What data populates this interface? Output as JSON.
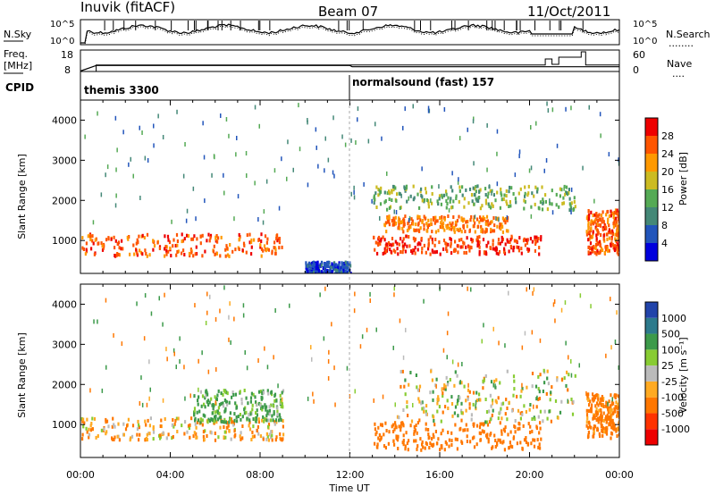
{
  "header": {
    "station": "Inuvik (fitACF)",
    "beam": "Beam 07",
    "date": "11/Oct/2011"
  },
  "noise_panel": {
    "left_label": "N.Sky",
    "left_ticks": [
      "10^5",
      "10^0"
    ],
    "right_ticks": [
      "10^5",
      "10^0"
    ],
    "right_label": "N.Search",
    "right_legend": "........"
  },
  "freq_panel": {
    "left_label_1": "Freq.",
    "left_label_2": "[MHz]",
    "left_ticks": [
      "18",
      "8"
    ],
    "right_ticks": [
      "60",
      "0"
    ],
    "right_label": "Nave",
    "right_legend": "...."
  },
  "cpid_panel": {
    "label": "CPID",
    "segments": [
      {
        "name": "themis 3300",
        "start_hour": 0
      },
      {
        "name": "normalsound (fast) 157",
        "start_hour": 12
      }
    ]
  },
  "colors": {
    "power_scale": [
      "#0000dd",
      "#2255bb",
      "#448877",
      "#55aa55",
      "#ccbb22",
      "#ff9900",
      "#ff5500",
      "#ee0000"
    ],
    "velocity_scale": [
      "#2244aa",
      "#2d7a8c",
      "#3c9a4a",
      "#88cc33",
      "#bbbbbb",
      "#ffaa22",
      "#ff7700",
      "#ff3300",
      "#ee0000"
    ]
  },
  "chart_data": [
    {
      "type": "line",
      "name": "noise",
      "x_range": [
        0,
        24
      ],
      "series": [
        {
          "name": "N.Sky",
          "style": "solid"
        },
        {
          "name": "N.Search",
          "style": "dotted"
        }
      ]
    },
    {
      "type": "line",
      "name": "frequency",
      "ylim_left": [
        8,
        18
      ],
      "ylim_right": [
        0,
        60
      ],
      "series": [
        {
          "name": "Freq.",
          "x": [
            0,
            0.7,
            12,
            12.1,
            24
          ],
          "y": [
            8.2,
            10.8,
            10.8,
            10.2,
            10.2
          ]
        },
        {
          "name": "Nave",
          "x": [
            0,
            0.7,
            20.5,
            20.7,
            21,
            21.3,
            22.3,
            22.5,
            24
          ],
          "y": [
            0,
            18,
            18,
            35,
            20,
            40,
            55,
            18,
            18
          ]
        }
      ]
    },
    {
      "type": "heatmap",
      "name": "power",
      "xlabel": "",
      "ylabel": "Slant Range [km]",
      "xlim": [
        0,
        24
      ],
      "ylim": [
        180,
        4500
      ],
      "yticks": [
        1000,
        2000,
        3000,
        4000
      ],
      "colorbar": {
        "label": "Power [dB]",
        "ticks": [
          "28",
          "24",
          "20",
          "16",
          "12",
          "8",
          "4"
        ],
        "range": [
          0,
          32
        ]
      },
      "regions": [
        {
          "x0": 0,
          "x1": 9,
          "y0": 650,
          "y1": 1200,
          "value": 26
        },
        {
          "x0": 13,
          "x1": 20.5,
          "y0": 700,
          "y1": 1150,
          "value": 28
        },
        {
          "x0": 13.5,
          "x1": 19,
          "y0": 1250,
          "y1": 1650,
          "value": 24
        },
        {
          "x0": 13,
          "x1": 22,
          "y0": 1800,
          "y1": 2400,
          "value": 14
        },
        {
          "x0": 22.5,
          "x1": 24,
          "y0": 700,
          "y1": 1800,
          "value": 26
        },
        {
          "x0": 10,
          "x1": 12,
          "y0": 200,
          "y1": 500,
          "value": 6
        }
      ]
    },
    {
      "type": "heatmap",
      "name": "velocity",
      "xlabel": "Time UT",
      "ylabel": "Slant Range [km]",
      "xlim": [
        0,
        24
      ],
      "ylim": [
        180,
        4500
      ],
      "xticks": [
        "00:00",
        "04:00",
        "08:00",
        "12:00",
        "16:00",
        "20:00",
        "00:00"
      ],
      "yticks": [
        1000,
        2000,
        3000,
        4000
      ],
      "colorbar": {
        "label": "Velocity [m s⁻¹]",
        "ticks": [
          "1000",
          "500",
          "100",
          "25",
          "-25",
          "-100",
          "-500",
          "-1000"
        ]
      },
      "regions": [
        {
          "x0": 0,
          "x1": 9,
          "y0": 650,
          "y1": 1200,
          "value": -80
        },
        {
          "x0": 5,
          "x1": 9,
          "y0": 1100,
          "y1": 1900,
          "value": 150
        },
        {
          "x0": 13,
          "x1": 20.5,
          "y0": 400,
          "y1": 1100,
          "value": -300
        },
        {
          "x0": 14,
          "x1": 22,
          "y0": 1100,
          "y1": 2400,
          "value": 0
        },
        {
          "x0": 22.5,
          "x1": 24,
          "y0": 700,
          "y1": 1800,
          "value": -200
        }
      ]
    }
  ]
}
